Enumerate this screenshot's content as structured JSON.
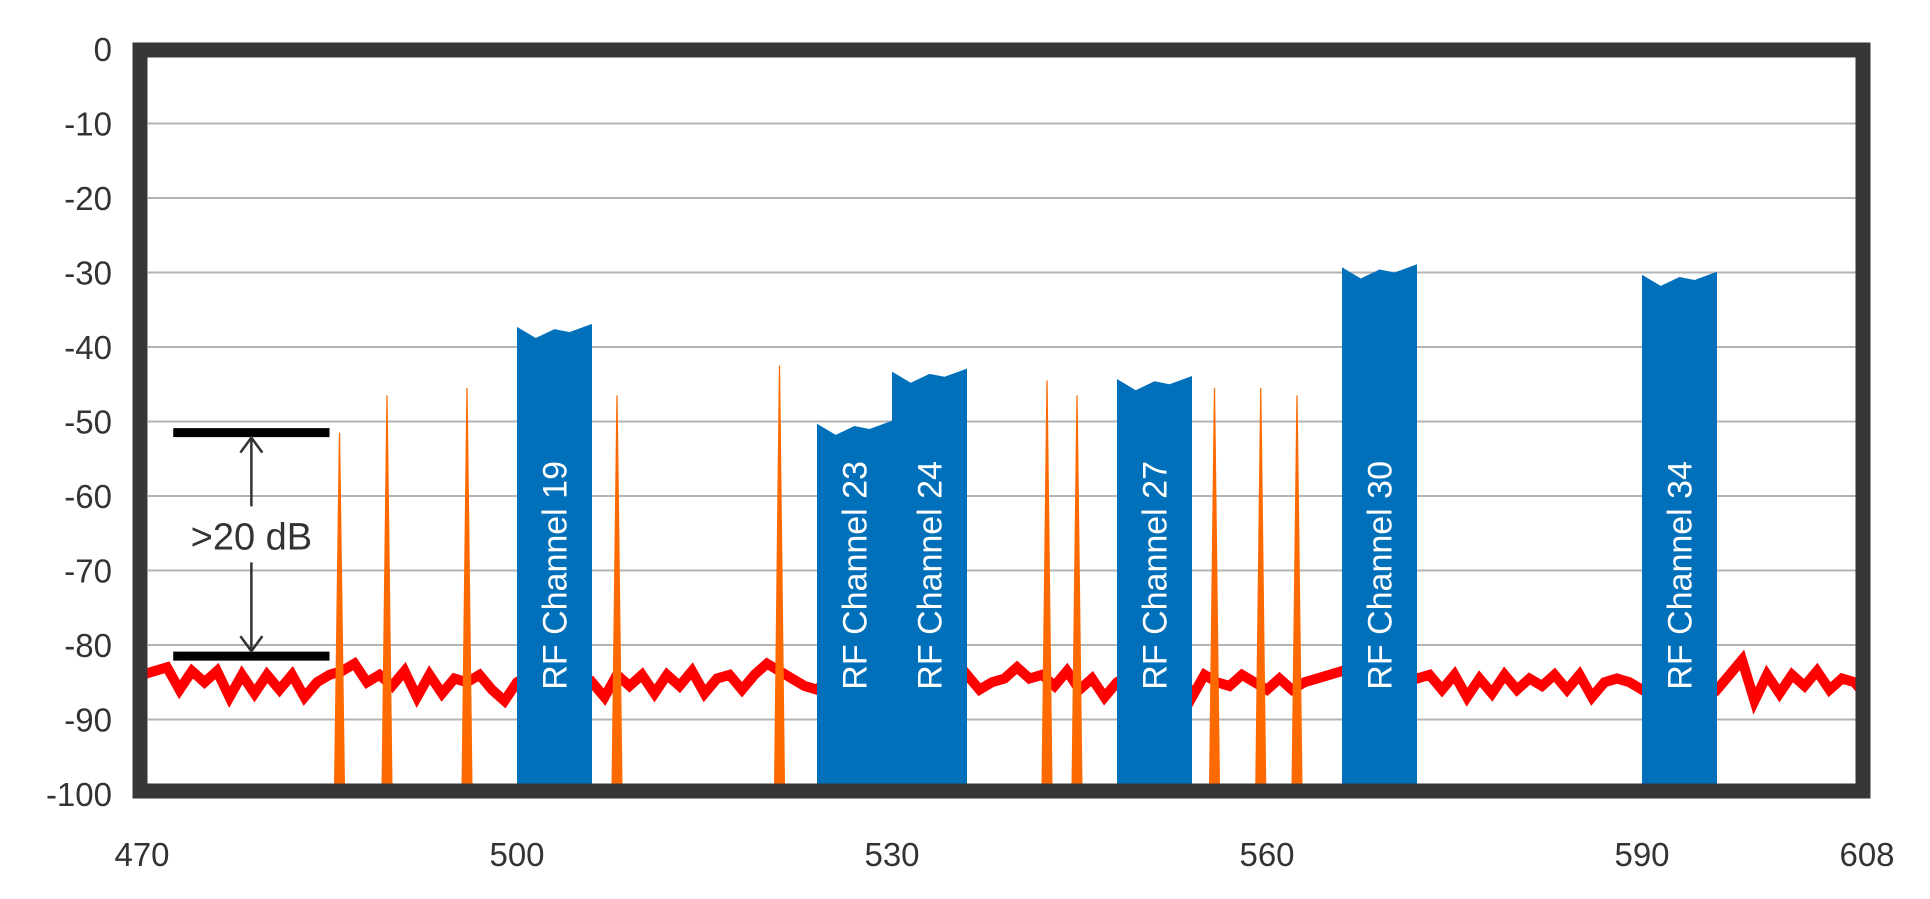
{
  "chart_data": {
    "type": "area",
    "title": "",
    "xlabel": "",
    "ylabel": "",
    "xlim": [
      470,
      608
    ],
    "ylim": [
      -100,
      0
    ],
    "x_ticks": [
      "470",
      "500",
      "530",
      "560",
      "590",
      "608"
    ],
    "y_ticks": [
      "0",
      "-10",
      "-20",
      "-30",
      "-40",
      "-50",
      "-60",
      "-70",
      "-80",
      "-90",
      "-100"
    ],
    "grid": true,
    "colors": {
      "channel": "#0070BA",
      "spike": "#FF6A00",
      "noise": "#FF0000",
      "frame": "#383636",
      "grid": "#B4B4B4",
      "annotation": "#000000"
    },
    "channels": [
      {
        "label": "RF Channel 19",
        "x_start": 500,
        "x_end": 506,
        "level": -37
      },
      {
        "label": "RF Channel 23",
        "x_start": 524,
        "x_end": 530,
        "level": -50
      },
      {
        "label": "RF Channel 24",
        "x_start": 530,
        "x_end": 536,
        "level": -43
      },
      {
        "label": "RF Channel 27",
        "x_start": 548,
        "x_end": 554,
        "level": -44
      },
      {
        "label": "RF Channel 30",
        "x_start": 566,
        "x_end": 572,
        "level": -29
      },
      {
        "label": "RF Channel 34",
        "x_start": 590,
        "x_end": 596,
        "level": -30
      }
    ],
    "spikes": [
      {
        "x": 485.8,
        "y": -51.5
      },
      {
        "x": 489.6,
        "y": -46.5
      },
      {
        "x": 496.0,
        "y": -45.5
      },
      {
        "x": 508.0,
        "y": -46.5
      },
      {
        "x": 521.0,
        "y": -42.5
      },
      {
        "x": 542.4,
        "y": -44.5
      },
      {
        "x": 544.8,
        "y": -46.5
      },
      {
        "x": 555.8,
        "y": -45.5
      },
      {
        "x": 559.5,
        "y": -45.5
      },
      {
        "x": 562.4,
        "y": -46.5
      }
    ],
    "noise_floor": {
      "x_start": 470,
      "x_end": 608,
      "values": [
        -84,
        -83.5,
        -83,
        -86,
        -83.5,
        -85,
        -83.5,
        -87,
        -84,
        -86.5,
        -84,
        -86,
        -84,
        -87,
        -85,
        -84,
        -83.5,
        -82.5,
        -85,
        -84,
        -85.5,
        -83.5,
        -87,
        -84,
        -86.5,
        -84.5,
        -85,
        -84,
        -86,
        -87.5,
        -85,
        -84,
        -86,
        -85,
        -84.5,
        -86,
        -85,
        -87,
        -84,
        -85.5,
        -84,
        -86.5,
        -84,
        -85.5,
        -83.5,
        -86.5,
        -84.5,
        -84,
        -86,
        -84,
        -82.5,
        -83.5,
        -84.5,
        -85.5,
        -86,
        -84.5,
        -85,
        -86,
        -84,
        -85,
        -86.5,
        -85,
        -83.5,
        -85,
        -84,
        -86,
        -84,
        -86,
        -85,
        -84.5,
        -83,
        -84.5,
        -84,
        -85.5,
        -83.5,
        -86,
        -84.5,
        -87,
        -85,
        -84,
        -86,
        -83.5,
        -86,
        -83,
        -87,
        -84,
        -85,
        -85.5,
        -84,
        -85,
        -86,
        -84.5,
        -86,
        -85,
        -84.5,
        -84,
        -83.5,
        -83,
        -82.5,
        -84,
        -86,
        -83.5,
        -84.5,
        -84,
        -86,
        -84,
        -87,
        -84.5,
        -86.5,
        -84,
        -86,
        -84.5,
        -85.5,
        -84,
        -86,
        -84,
        -87,
        -85,
        -84.5,
        -85,
        -86,
        -85,
        -84.5,
        -85,
        -83,
        -85,
        -86,
        -84,
        -82,
        -87.5,
        -84,
        -86.5,
        -84,
        -85.5,
        -83.5,
        -86,
        -84.5,
        -85,
        -87
      ]
    },
    "annotation": {
      "label": ">20 dB",
      "upper": -51.5,
      "lower": -81.5,
      "x_start": 472.5,
      "x_end": 485
    }
  }
}
